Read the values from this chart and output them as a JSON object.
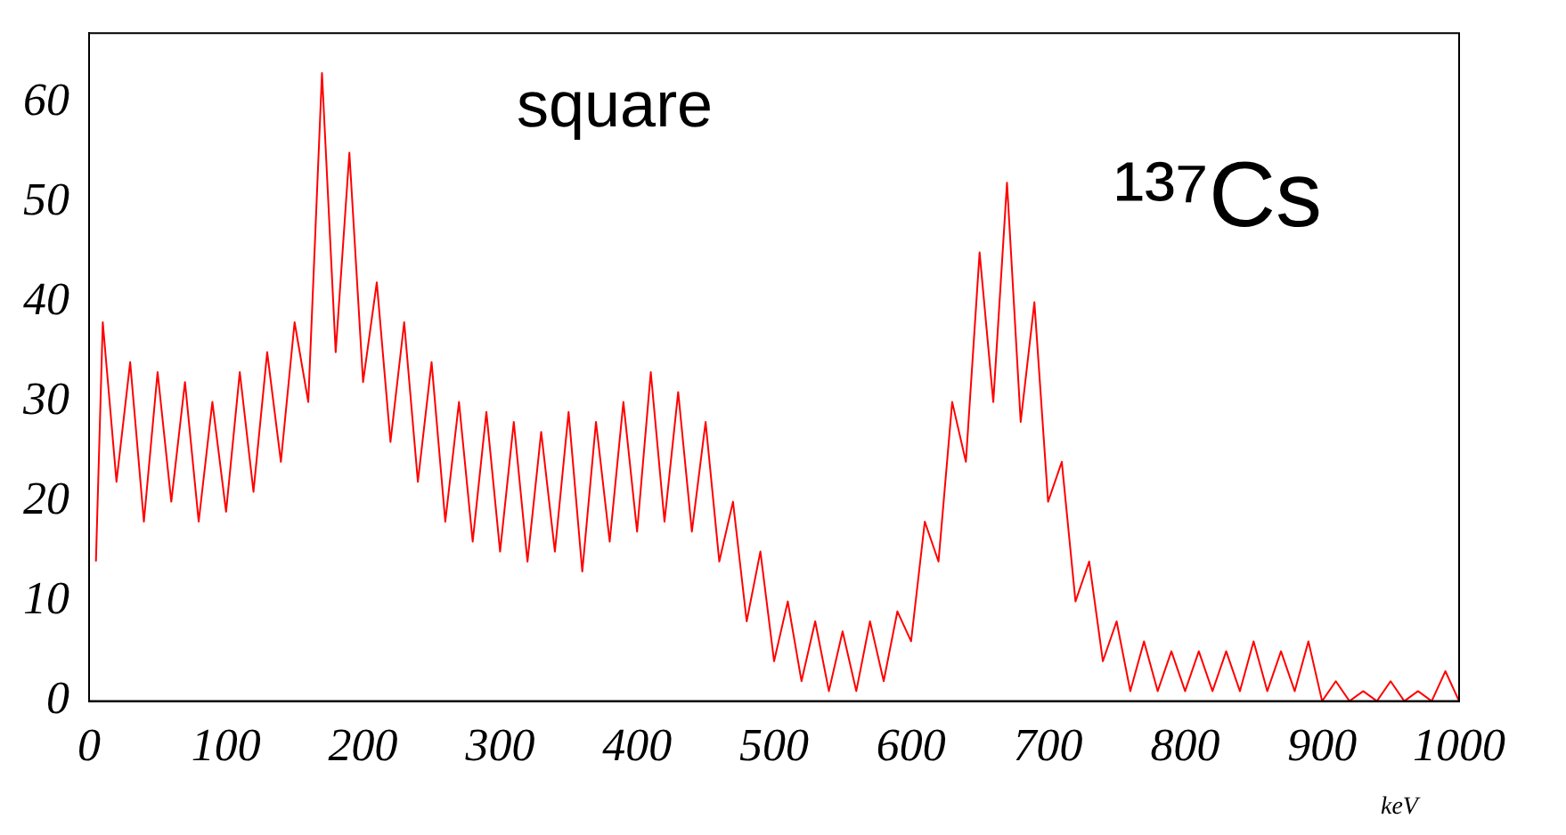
{
  "chart_data": {
    "type": "line",
    "xlabel": "keV",
    "annotations": [
      "square",
      "¹³⁷Cs"
    ],
    "xlim": [
      0,
      1000
    ],
    "ylim": [
      0,
      67
    ],
    "xticks": [
      0,
      100,
      200,
      300,
      400,
      500,
      600,
      700,
      800,
      900,
      1000
    ],
    "yticks": [
      0,
      10,
      20,
      30,
      40,
      50,
      60
    ],
    "grid": false,
    "legend": false,
    "marker": "none",
    "line_style": "solid",
    "series": [
      {
        "color": "#ff0000",
        "x": [
          5,
          10,
          20,
          30,
          40,
          50,
          60,
          70,
          80,
          90,
          100,
          110,
          120,
          130,
          140,
          150,
          160,
          170,
          180,
          190,
          200,
          210,
          220,
          230,
          240,
          250,
          260,
          270,
          280,
          290,
          300,
          310,
          320,
          330,
          340,
          350,
          360,
          370,
          380,
          390,
          400,
          410,
          420,
          430,
          440,
          450,
          460,
          470,
          480,
          490,
          500,
          510,
          520,
          530,
          540,
          550,
          560,
          570,
          580,
          590,
          600,
          610,
          620,
          630,
          640,
          650,
          660,
          670,
          680,
          690,
          700,
          710,
          720,
          730,
          740,
          750,
          760,
          770,
          780,
          790,
          800,
          810,
          820,
          830,
          840,
          850,
          860,
          870,
          880,
          890,
          900,
          910,
          920,
          930,
          940,
          950,
          960,
          970,
          980,
          990,
          1000
        ],
        "values": [
          14,
          38,
          22,
          34,
          18,
          33,
          20,
          32,
          18,
          30,
          19,
          33,
          21,
          35,
          24,
          38,
          30,
          63,
          35,
          55,
          32,
          42,
          26,
          38,
          22,
          34,
          18,
          30,
          16,
          29,
          15,
          28,
          14,
          27,
          15,
          29,
          13,
          28,
          16,
          30,
          17,
          33,
          18,
          31,
          17,
          28,
          14,
          20,
          8,
          15,
          4,
          10,
          2,
          8,
          1,
          7,
          1,
          8,
          2,
          9,
          6,
          18,
          14,
          30,
          24,
          45,
          30,
          52,
          28,
          40,
          20,
          24,
          10,
          14,
          4,
          8,
          1,
          6,
          1,
          5,
          1,
          5,
          1,
          5,
          1,
          6,
          1,
          5,
          1,
          6,
          0,
          2,
          0,
          1,
          0,
          2,
          0,
          1,
          0,
          3,
          0
        ]
      }
    ]
  }
}
